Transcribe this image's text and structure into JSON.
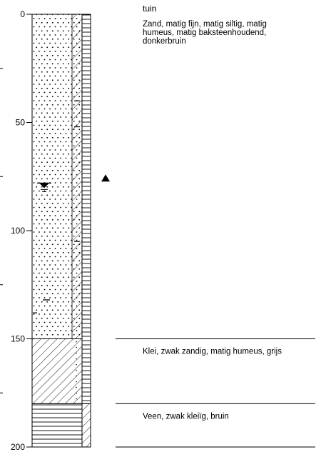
{
  "depth_axis": {
    "ticks": [
      "0",
      "50",
      "100",
      "150",
      "200"
    ],
    "range": [
      0,
      200
    ]
  },
  "header": {
    "label": "tuin"
  },
  "layers": [
    {
      "top": 0,
      "bottom": 150,
      "pattern": "sand-dots",
      "description_lines": [
        "Zand, matig fijn, matig siltig, matig",
        "humeus, matig baksteenhoudend,",
        "donkerbruin"
      ]
    },
    {
      "top": 150,
      "bottom": 180,
      "pattern": "clay-hatch",
      "description_lines": [
        "Klei, zwak zandig, matig humeus, grijs"
      ]
    },
    {
      "top": 180,
      "bottom": 200,
      "pattern": "peat-horizontal",
      "description_lines": [
        "Veen, zwak kleiïg, bruin"
      ]
    }
  ],
  "water_level": {
    "depth": 79,
    "symbol": "groundwater-triangle-icon"
  },
  "marker": {
    "depth": 76,
    "symbol": "filled-triangle-icon"
  },
  "colors": {
    "line": "#000000",
    "background": "#ffffff"
  }
}
